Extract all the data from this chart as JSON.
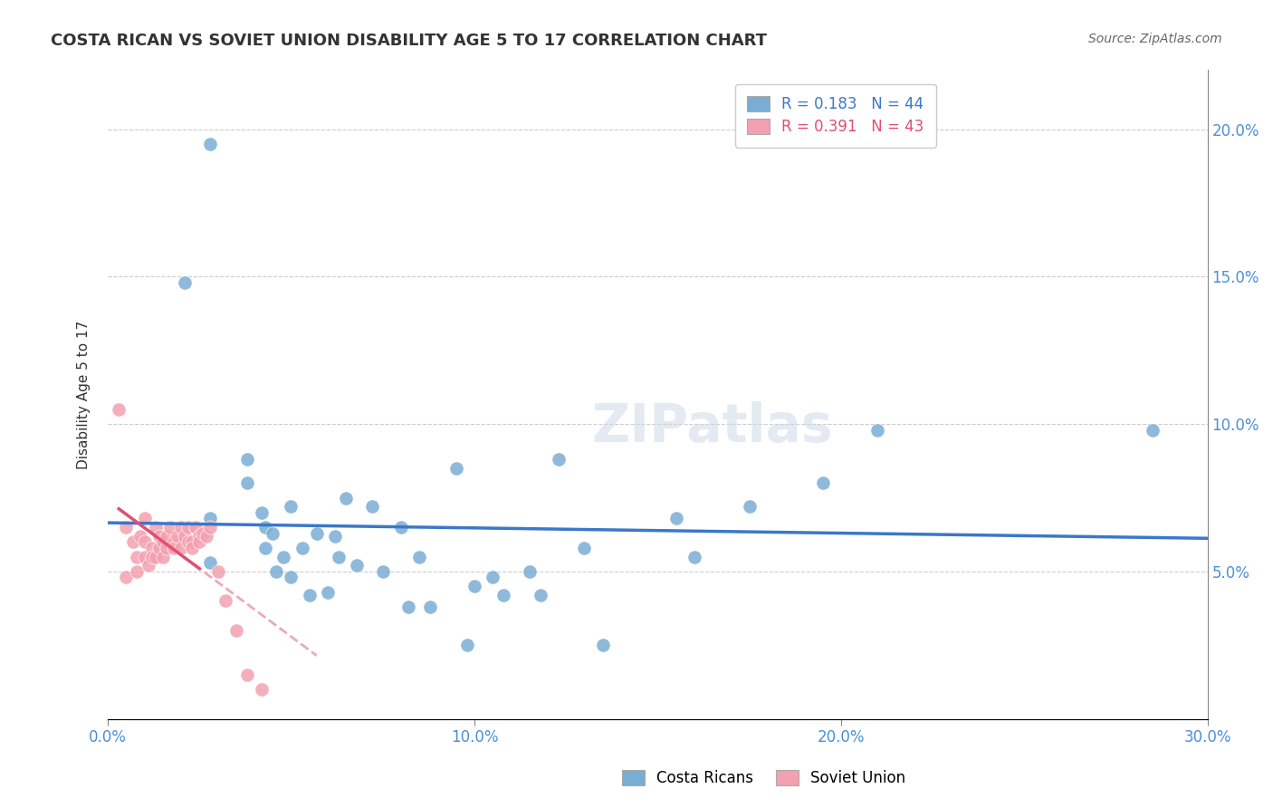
{
  "title": "COSTA RICAN VS SOVIET UNION DISABILITY AGE 5 TO 17 CORRELATION CHART",
  "source": "Source: ZipAtlas.com",
  "ylabel": "Disability Age 5 to 17",
  "xlim": [
    0.0,
    0.3
  ],
  "ylim": [
    0.0,
    0.22
  ],
  "grid_color": "#cccccc",
  "background_color": "#ffffff",
  "legend_blue_label": "Costa Ricans",
  "legend_pink_label": "Soviet Union",
  "blue_R": "0.183",
  "blue_N": "44",
  "pink_R": "0.391",
  "pink_N": "43",
  "blue_color": "#7aadd4",
  "pink_color": "#f4a0b0",
  "blue_line_color": "#3a78c9",
  "pink_line_color": "#e05070",
  "pink_line_dashed_color": "#e8aabb",
  "blue_scatter_x": [
    0.021,
    0.028,
    0.028,
    0.038,
    0.038,
    0.042,
    0.043,
    0.043,
    0.045,
    0.046,
    0.048,
    0.05,
    0.05,
    0.053,
    0.055,
    0.057,
    0.06,
    0.062,
    0.063,
    0.065,
    0.068,
    0.072,
    0.075,
    0.08,
    0.082,
    0.085,
    0.088,
    0.095,
    0.098,
    0.1,
    0.105,
    0.108,
    0.115,
    0.118,
    0.123,
    0.13,
    0.135,
    0.155,
    0.16,
    0.175,
    0.195,
    0.21,
    0.285,
    0.028
  ],
  "blue_scatter_y": [
    0.148,
    0.068,
    0.053,
    0.088,
    0.08,
    0.07,
    0.065,
    0.058,
    0.063,
    0.05,
    0.055,
    0.072,
    0.048,
    0.058,
    0.042,
    0.063,
    0.043,
    0.062,
    0.055,
    0.075,
    0.052,
    0.072,
    0.05,
    0.065,
    0.038,
    0.055,
    0.038,
    0.085,
    0.025,
    0.045,
    0.048,
    0.042,
    0.05,
    0.042,
    0.088,
    0.058,
    0.025,
    0.068,
    0.055,
    0.072,
    0.08,
    0.098,
    0.098,
    0.195
  ],
  "pink_scatter_x": [
    0.003,
    0.005,
    0.005,
    0.007,
    0.008,
    0.008,
    0.009,
    0.01,
    0.01,
    0.01,
    0.011,
    0.012,
    0.012,
    0.013,
    0.013,
    0.014,
    0.014,
    0.015,
    0.015,
    0.016,
    0.016,
    0.017,
    0.018,
    0.018,
    0.019,
    0.02,
    0.02,
    0.021,
    0.022,
    0.022,
    0.023,
    0.023,
    0.024,
    0.025,
    0.025,
    0.026,
    0.027,
    0.028,
    0.03,
    0.032,
    0.035,
    0.038,
    0.042
  ],
  "pink_scatter_y": [
    0.105,
    0.065,
    0.048,
    0.06,
    0.055,
    0.05,
    0.062,
    0.068,
    0.06,
    0.055,
    0.052,
    0.058,
    0.055,
    0.065,
    0.055,
    0.062,
    0.058,
    0.06,
    0.055,
    0.062,
    0.058,
    0.065,
    0.06,
    0.058,
    0.062,
    0.065,
    0.058,
    0.062,
    0.065,
    0.06,
    0.06,
    0.058,
    0.065,
    0.062,
    0.06,
    0.063,
    0.062,
    0.065,
    0.05,
    0.04,
    0.03,
    0.015,
    0.01
  ]
}
